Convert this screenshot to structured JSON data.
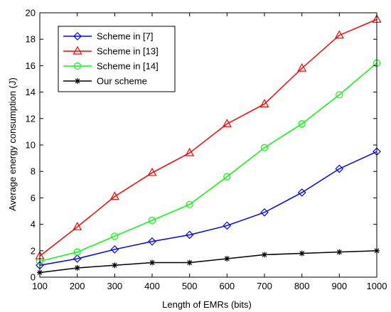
{
  "chart_data": {
    "type": "line",
    "xlabel": "Length of EMRs (bits)",
    "ylabel": "Average energy consumption (J)",
    "x": [
      100,
      200,
      300,
      400,
      500,
      600,
      700,
      800,
      900,
      1000
    ],
    "xlim": [
      100,
      1000
    ],
    "ylim": [
      0,
      20
    ],
    "xticks": [
      "100",
      "200",
      "300",
      "400",
      "500",
      "600",
      "700",
      "800",
      "900",
      "1000"
    ],
    "yticks": [
      "0",
      "2",
      "4",
      "6",
      "8",
      "10",
      "12",
      "14",
      "16",
      "18",
      "20"
    ],
    "grid": false,
    "legend_position": "top-left",
    "series": [
      {
        "name": "Scheme in [7]",
        "color": "#0000ff",
        "marker": "diamond",
        "values": [
          0.9,
          1.4,
          2.1,
          2.7,
          3.2,
          3.9,
          4.9,
          6.4,
          8.2,
          9.5
        ]
      },
      {
        "name": "Scheme in [13]",
        "color": "#ff0000",
        "marker": "triangle",
        "values": [
          1.6,
          3.8,
          6.1,
          7.9,
          9.4,
          11.6,
          13.1,
          15.8,
          18.3,
          19.5
        ]
      },
      {
        "name": "Scheme in [14]",
        "color": "#00ff00",
        "marker": "circle",
        "values": [
          1.2,
          1.9,
          3.1,
          4.3,
          5.5,
          7.6,
          9.8,
          11.6,
          13.8,
          16.2
        ]
      },
      {
        "name": "Our scheme",
        "color": "#000000",
        "marker": "asterisk",
        "values": [
          0.35,
          0.7,
          0.9,
          1.1,
          1.1,
          1.4,
          1.7,
          1.8,
          1.9,
          2.0
        ]
      }
    ]
  }
}
